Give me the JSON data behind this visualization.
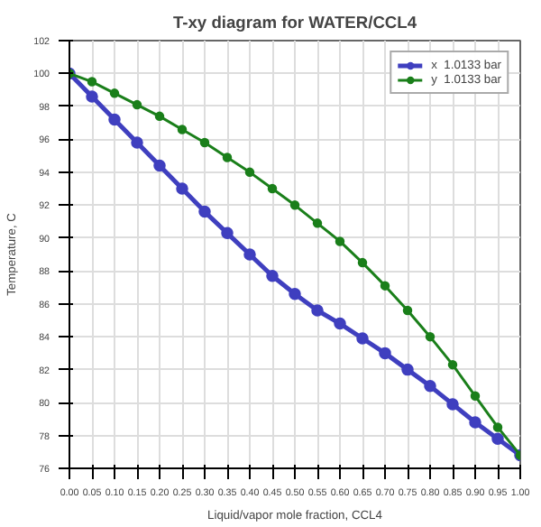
{
  "chart_data": {
    "type": "line",
    "title": "T-xy diagram for WATER/CCL4",
    "xlabel": "Liquid/vapor mole fraction, CCL4",
    "ylabel": "Temperature, C",
    "x": [
      0,
      0.05,
      0.1,
      0.15,
      0.2,
      0.25,
      0.3,
      0.35,
      0.4,
      0.45,
      0.5,
      0.55,
      0.6,
      0.65,
      0.7,
      0.75,
      0.8,
      0.85,
      0.9,
      0.95,
      1.0
    ],
    "series": [
      {
        "name": "x  1.0133 bar",
        "color": "#3f3fbf",
        "values": [
          100,
          98.6,
          97.2,
          95.8,
          94.4,
          93.0,
          91.6,
          90.3,
          89.0,
          87.7,
          86.6,
          85.6,
          84.8,
          83.9,
          83.0,
          82.0,
          81.0,
          79.9,
          78.8,
          77.8,
          76.8
        ]
      },
      {
        "name": "y  1.0133 bar",
        "color": "#1a7f1a",
        "values": [
          100,
          99.5,
          98.8,
          98.1,
          97.4,
          96.6,
          95.8,
          94.9,
          94.0,
          93.0,
          92.0,
          90.9,
          89.8,
          88.5,
          87.1,
          85.6,
          84.0,
          82.3,
          80.4,
          78.5,
          76.8
        ]
      }
    ],
    "xlim": [
      0,
      1
    ],
    "ylim": [
      76,
      102
    ],
    "xticks": [
      {
        "value": 0,
        "label": "0.00"
      },
      {
        "value": 0.05,
        "label": "0.05"
      },
      {
        "value": 0.1,
        "label": "0.10"
      },
      {
        "value": 0.15,
        "label": "0.15"
      },
      {
        "value": 0.2,
        "label": "0.20"
      },
      {
        "value": 0.25,
        "label": "0.25"
      },
      {
        "value": 0.3,
        "label": "0.30"
      },
      {
        "value": 0.35,
        "label": "0.35"
      },
      {
        "value": 0.4,
        "label": "0.40"
      },
      {
        "value": 0.45,
        "label": "0.45"
      },
      {
        "value": 0.5,
        "label": "0.50"
      },
      {
        "value": 0.55,
        "label": "0.55"
      },
      {
        "value": 0.6,
        "label": "0.60"
      },
      {
        "value": 0.65,
        "label": "0.65"
      },
      {
        "value": 0.7,
        "label": "0.70"
      },
      {
        "value": 0.75,
        "label": "0.75"
      },
      {
        "value": 0.8,
        "label": "0.80"
      },
      {
        "value": 0.85,
        "label": "0.85"
      },
      {
        "value": 0.9,
        "label": "0.90"
      },
      {
        "value": 0.95,
        "label": "0.95"
      },
      {
        "value": 1.0,
        "label": "1.00"
      }
    ],
    "yticks": [
      76,
      78,
      80,
      82,
      84,
      86,
      88,
      90,
      92,
      94,
      96,
      98,
      100,
      102
    ],
    "grid": true,
    "legend": "top right",
    "marker": "circle",
    "line_style": "solid"
  }
}
